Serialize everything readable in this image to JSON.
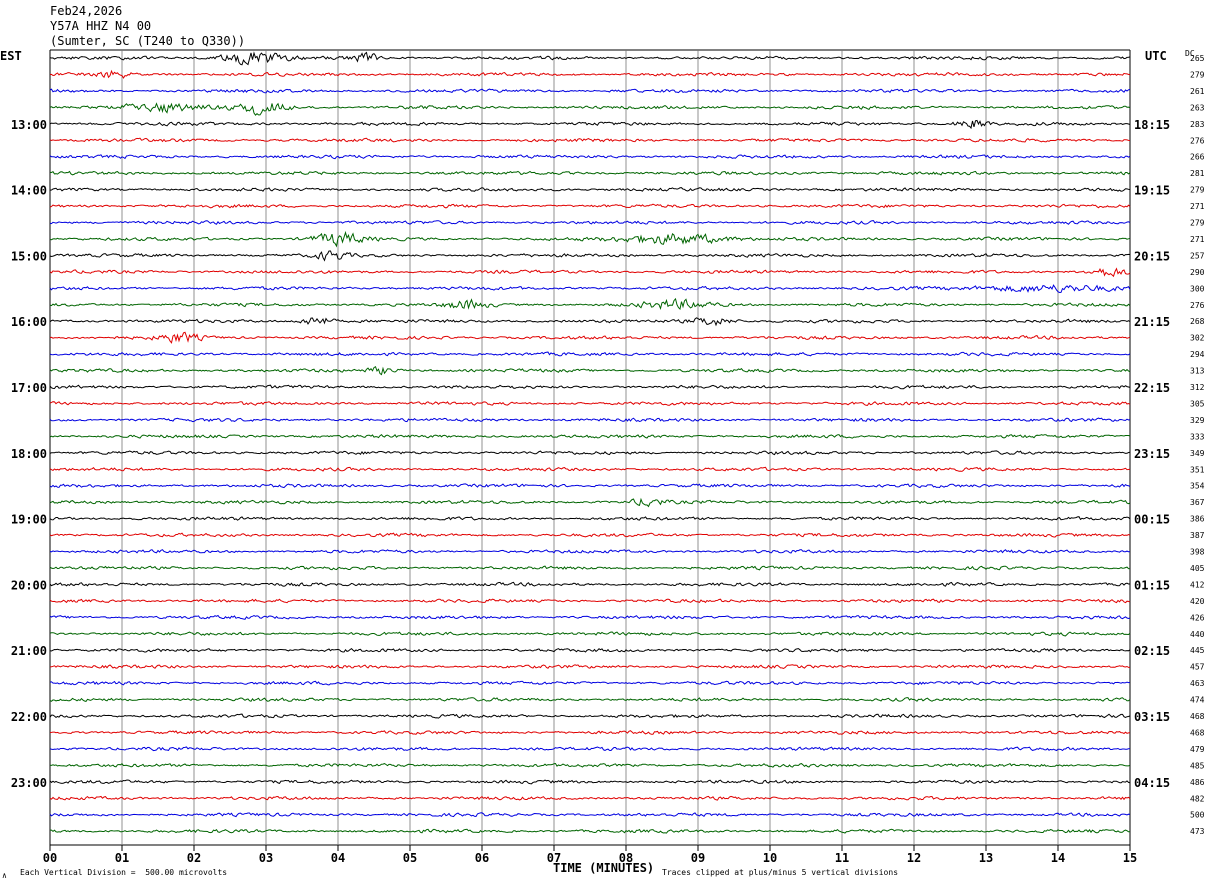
{
  "header": {
    "date": "Feb24,2026",
    "station": "Y57A HHZ N4 00",
    "location": "(Sumter, SC (T240 to Q330))"
  },
  "labels": {
    "left_tz": "EST",
    "right_tz": "UTC",
    "dc": "DC",
    "xlabel": "TIME (MINUTES)",
    "scale_note": "Each Vertical Division =  500.00 microvolts",
    "clip_note": "Traces clipped at plus/minus 5 vertical divisions",
    "corner_mark": "∧"
  },
  "colors": {
    "trace_cycle": [
      "#000000",
      "#e00000",
      "#0000e0",
      "#006400"
    ],
    "grid": "#000000",
    "background": "#ffffff"
  },
  "chart_data": {
    "type": "line",
    "description_kind": "helicorder",
    "xlim": [
      0,
      15
    ],
    "x_ticks": [
      "00",
      "01",
      "02",
      "03",
      "04",
      "05",
      "06",
      "07",
      "08",
      "09",
      "10",
      "11",
      "12",
      "13",
      "14",
      "15"
    ],
    "rows_per_hour": 4,
    "left_hour_labels": [
      "13:00",
      "14:00",
      "15:00",
      "16:00",
      "17:00",
      "18:00",
      "19:00",
      "20:00",
      "21:00",
      "22:00",
      "23:00"
    ],
    "right_hour_labels": [
      "18:15",
      "19:15",
      "20:15",
      "21:15",
      "22:15",
      "23:15",
      "00:15",
      "01:15",
      "02:15",
      "03:15",
      "04:15"
    ],
    "first_labeled_row": 4,
    "dc_offsets": [
      265,
      279,
      261,
      263,
      283,
      276,
      266,
      281,
      279,
      271,
      279,
      271,
      257,
      290,
      300,
      276,
      268,
      302,
      294,
      313,
      312,
      305,
      329,
      333,
      349,
      351,
      354,
      367,
      386,
      387,
      398,
      405,
      412,
      420,
      426,
      440,
      445,
      457,
      463,
      474,
      468,
      468,
      479,
      485,
      486,
      482,
      500,
      473
    ],
    "events": [
      {
        "row": 0,
        "minute": 2.8,
        "width": 0.6,
        "amp": 2.6
      },
      {
        "row": 0,
        "minute": 4.4,
        "width": 0.3,
        "amp": 1.6
      },
      {
        "row": 1,
        "minute": 0.9,
        "width": 0.3,
        "amp": 1.5
      },
      {
        "row": 3,
        "minute": 1.5,
        "width": 0.9,
        "amp": 1.8
      },
      {
        "row": 3,
        "minute": 3.0,
        "width": 0.5,
        "amp": 3.0
      },
      {
        "row": 4,
        "minute": 12.8,
        "width": 0.3,
        "amp": 1.8
      },
      {
        "row": 11,
        "minute": 4.0,
        "width": 0.5,
        "amp": 2.5
      },
      {
        "row": 11,
        "minute": 8.7,
        "width": 1.0,
        "amp": 2.3
      },
      {
        "row": 12,
        "minute": 3.9,
        "width": 0.3,
        "amp": 1.8
      },
      {
        "row": 13,
        "minute": 14.7,
        "width": 0.4,
        "amp": 1.8
      },
      {
        "row": 14,
        "minute": 13.8,
        "width": 1.3,
        "amp": 1.5
      },
      {
        "row": 15,
        "minute": 5.8,
        "width": 0.4,
        "amp": 1.7
      },
      {
        "row": 15,
        "minute": 8.7,
        "width": 0.7,
        "amp": 1.7
      },
      {
        "row": 16,
        "minute": 3.7,
        "width": 0.3,
        "amp": 2.1
      },
      {
        "row": 16,
        "minute": 9.2,
        "width": 0.4,
        "amp": 1.8
      },
      {
        "row": 17,
        "minute": 1.8,
        "width": 0.4,
        "amp": 1.9
      },
      {
        "row": 19,
        "minute": 4.6,
        "width": 0.3,
        "amp": 1.4
      },
      {
        "row": 27,
        "minute": 8.3,
        "width": 0.3,
        "amp": 1.7
      }
    ]
  }
}
